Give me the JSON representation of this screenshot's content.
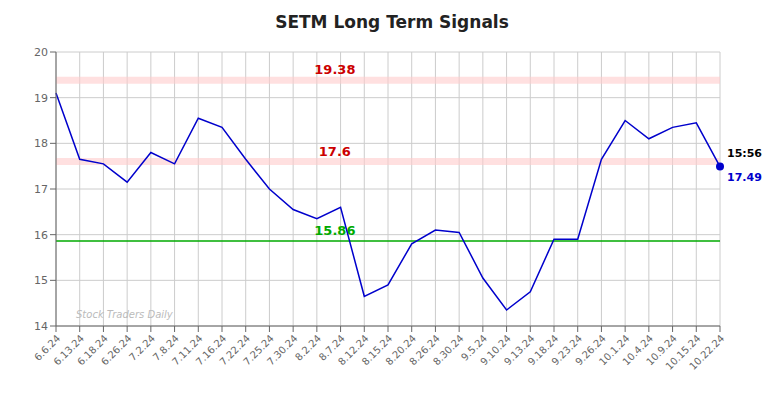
{
  "chart_data": {
    "type": "line",
    "title": "SETM Long Term Signals",
    "categories": [
      "6.6.24",
      "6.13.24",
      "6.18.24",
      "6.26.24",
      "7.2.24",
      "7.8.24",
      "7.11.24",
      "7.16.24",
      "7.22.24",
      "7.25.24",
      "7.30.24",
      "8.2.24",
      "8.7.24",
      "8.12.24",
      "8.15.24",
      "8.20.24",
      "8.26.24",
      "8.30.24",
      "9.5.24",
      "9.10.24",
      "9.13.24",
      "9.18.24",
      "9.23.24",
      "9.26.24",
      "10.1.24",
      "10.4.24",
      "10.9.24",
      "10.15.24",
      "10.22.24"
    ],
    "values": [
      19.1,
      17.65,
      17.55,
      17.15,
      17.8,
      17.55,
      18.55,
      18.35,
      17.65,
      17.0,
      16.55,
      16.35,
      16.6,
      14.65,
      14.9,
      15.8,
      16.1,
      16.05,
      15.05,
      14.35,
      14.75,
      15.9,
      15.9,
      17.65,
      18.5,
      18.1,
      18.35,
      18.45,
      17.49
    ],
    "color": "#0000cc",
    "ylim": [
      14,
      20
    ],
    "yticks": [
      14,
      15,
      16,
      17,
      18,
      19,
      20
    ],
    "grid": true,
    "reference_lines": [
      {
        "value": 19.38,
        "label": "19.38",
        "color": "#cc0000",
        "band_color": "#ffcccc"
      },
      {
        "value": 17.6,
        "label": "17.6",
        "color": "#cc0000",
        "band_color": "#ffcccc"
      },
      {
        "value": 15.86,
        "label": "15.86",
        "color": "#00aa00"
      }
    ],
    "highlight_point": {
      "category": "10.22.24",
      "value": 17.49,
      "time_label": "15:56",
      "value_label": "17.49"
    },
    "watermark": "Stock Traders Daily"
  }
}
